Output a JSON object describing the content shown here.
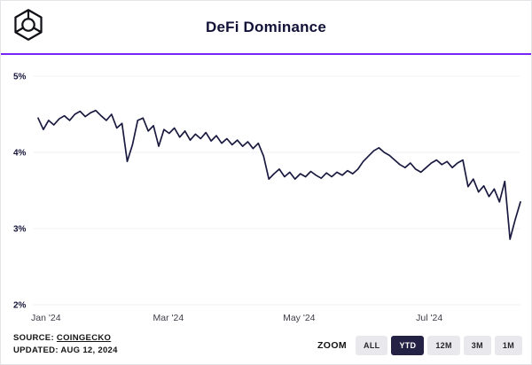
{
  "header": {
    "title": "DeFi Dominance",
    "logo": "block-cube-logo"
  },
  "chart_data": {
    "type": "line",
    "title": "DeFi Dominance",
    "xlabel": "",
    "ylabel": "",
    "unit": "%",
    "ylim": [
      2,
      5
    ],
    "grid": "subtle-horizontal",
    "legend": "none",
    "line_color": "#1a1a40",
    "y_ticks": [
      {
        "label": "5%",
        "value": 5
      },
      {
        "label": "4%",
        "value": 4
      },
      {
        "label": "3%",
        "value": 3
      },
      {
        "label": "2%",
        "value": 2
      }
    ],
    "x_ticks": [
      {
        "label": "Jan '24",
        "pos": 0.0
      },
      {
        "label": "Mar '24",
        "pos": 0.27
      },
      {
        "label": "May '24",
        "pos": 0.541
      },
      {
        "label": "Jul '24",
        "pos": 0.811
      }
    ],
    "series": [
      {
        "name": "DeFi Dominance",
        "values": [
          4.45,
          4.3,
          4.42,
          4.36,
          4.44,
          4.48,
          4.42,
          4.5,
          4.54,
          4.47,
          4.52,
          4.55,
          4.48,
          4.42,
          4.5,
          4.32,
          4.38,
          3.88,
          4.1,
          4.42,
          4.45,
          4.28,
          4.35,
          4.08,
          4.3,
          4.25,
          4.32,
          4.2,
          4.28,
          4.16,
          4.24,
          4.18,
          4.26,
          4.15,
          4.22,
          4.12,
          4.18,
          4.1,
          4.16,
          4.08,
          4.14,
          4.05,
          4.12,
          3.95,
          3.65,
          3.72,
          3.78,
          3.68,
          3.74,
          3.65,
          3.72,
          3.68,
          3.75,
          3.7,
          3.66,
          3.73,
          3.68,
          3.74,
          3.7,
          3.76,
          3.72,
          3.78,
          3.88,
          3.95,
          4.02,
          4.06,
          4.0,
          3.96,
          3.9,
          3.84,
          3.8,
          3.86,
          3.78,
          3.74,
          3.8,
          3.86,
          3.9,
          3.84,
          3.88,
          3.8,
          3.86,
          3.9,
          3.55,
          3.65,
          3.48,
          3.56,
          3.42,
          3.52,
          3.35,
          3.62,
          2.86,
          3.12,
          3.35
        ]
      }
    ]
  },
  "footer": {
    "source_prefix": "SOURCE:",
    "source_link": "COINGECKO",
    "updated": "UPDATED: AUG 12, 2024"
  },
  "zoom": {
    "label": "ZOOM",
    "buttons": [
      "ALL",
      "YTD",
      "12M",
      "3M",
      "1M"
    ],
    "active": "YTD",
    "active_bg": "#232144"
  },
  "accent_color": "#7524f9"
}
